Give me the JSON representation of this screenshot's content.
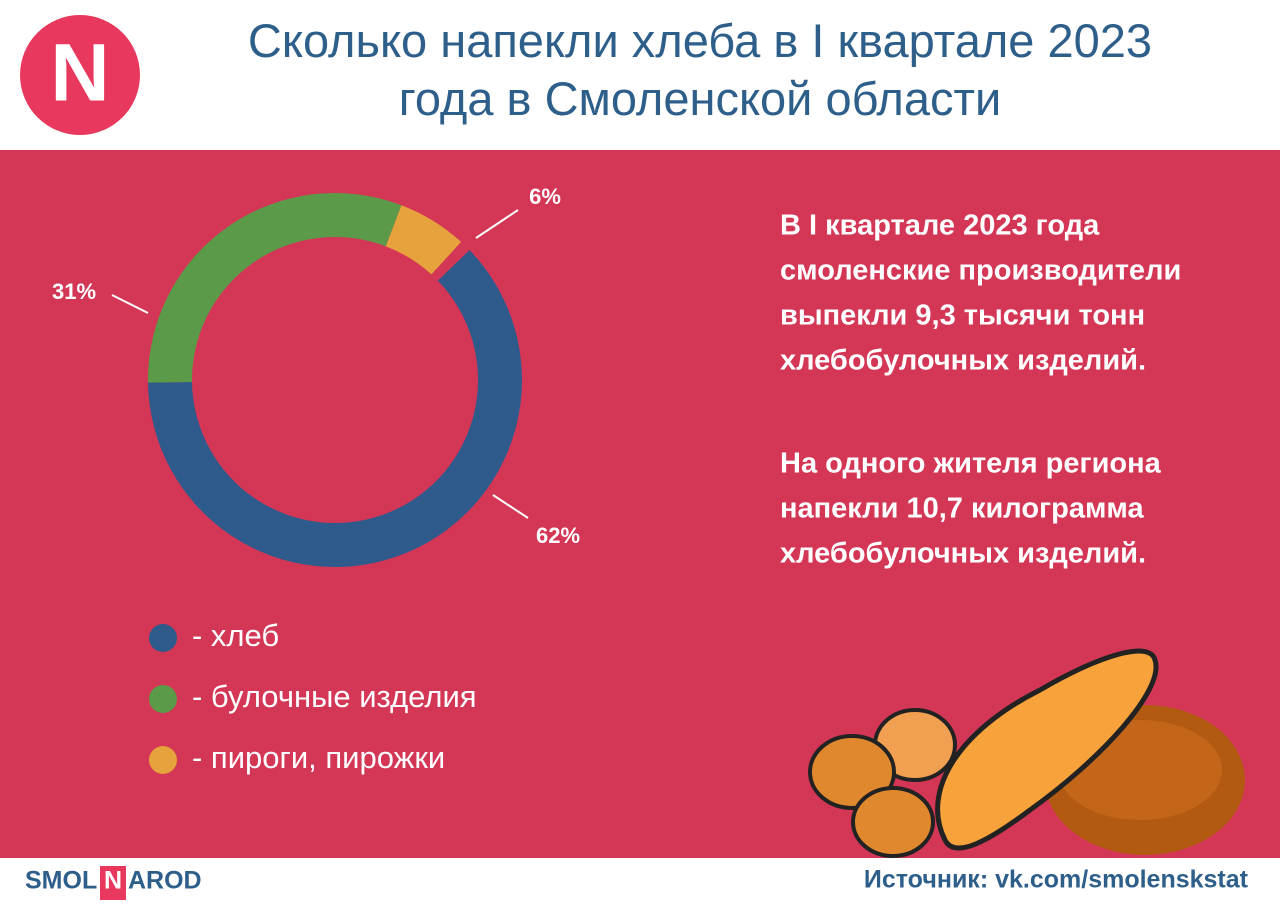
{
  "chart_data": {
    "type": "donut",
    "title": "Сколько напекли хлеба в I квартале 2023 года в Смоленской области",
    "categories": [
      "- хлеб",
      "- булочные изделия",
      "- пироги, пирожки"
    ],
    "values": [
      62,
      31,
      6
    ],
    "value_labels": [
      "62%",
      "31%",
      "6%"
    ],
    "colors": [
      "#2e5a8c",
      "#5b9a48",
      "#e6a23c"
    ]
  },
  "header": {
    "logo": "N"
  },
  "text": [
    {
      "lines": [
        "В I квартале 2023 года",
        "смоленские производители",
        "выпекли 9,3 тысячи тонн",
        "хлебобулочных изделий."
      ]
    },
    {
      "lines": [
        "На одного жителя региона",
        "напекли 10,7 килограмма",
        "хлебобулочных изделий."
      ]
    }
  ],
  "footer": {
    "brand": [
      "SMOL",
      "N",
      "AROD"
    ],
    "source": "Источник: vk.com/smolenskstat"
  }
}
